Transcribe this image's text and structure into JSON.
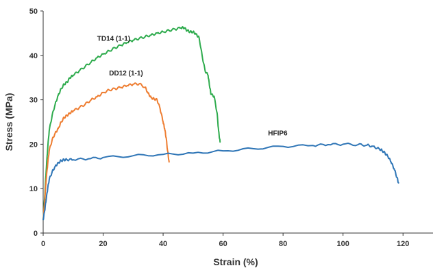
{
  "chart_data": {
    "type": "line",
    "title": "",
    "xlabel": "Strain (%)",
    "ylabel": "Stress (MPa)",
    "xlim": [
      0,
      130
    ],
    "ylim": [
      0,
      50
    ],
    "xticks": [
      0,
      20,
      40,
      60,
      80,
      100,
      120
    ],
    "yticks": [
      0,
      10,
      20,
      30,
      40,
      50
    ],
    "grid": false,
    "legend": "none (series labelled directly on plot)",
    "series": [
      {
        "name": "TD14 (1-1)",
        "color": "#2eab4d",
        "x": [
          0,
          0.5,
          1,
          1.5,
          2,
          3,
          4,
          5,
          6,
          7,
          8,
          9,
          10,
          12,
          14,
          16,
          18,
          20,
          22,
          24,
          26,
          28,
          30,
          32,
          34,
          36,
          38,
          40,
          42,
          44,
          46,
          47,
          48,
          49,
          50,
          51,
          52,
          53,
          54,
          55,
          55.5,
          56,
          57,
          58,
          58.5,
          59
        ],
        "y": [
          3,
          8,
          14,
          19,
          23,
          26.5,
          29,
          31,
          32.5,
          33.5,
          34,
          35,
          35.5,
          36.5,
          37.5,
          38.5,
          39.5,
          40.3,
          41,
          41.7,
          42.3,
          42.9,
          43.4,
          43.8,
          44.2,
          44.6,
          45,
          45.3,
          45.6,
          45.9,
          46.2,
          46.2,
          45.6,
          45.3,
          45.3,
          44.8,
          44,
          40,
          36.5,
          35.5,
          33,
          31.2,
          30.8,
          27,
          23,
          20.5
        ]
      },
      {
        "name": "DD12 (1-1)",
        "color": "#ee7d31",
        "x": [
          0,
          0.5,
          1,
          1.5,
          2,
          3,
          4,
          5,
          6,
          7,
          8,
          9,
          10,
          12,
          14,
          16,
          18,
          20,
          22,
          24,
          26,
          28,
          30,
          32,
          34,
          35,
          36,
          37,
          38,
          39,
          40,
          40.5,
          41,
          41.5,
          42
        ],
        "y": [
          3,
          7,
          12,
          15.5,
          18.5,
          21,
          22.5,
          23.5,
          25,
          26,
          26.5,
          27,
          27.5,
          28.2,
          29,
          30,
          30.7,
          31.6,
          32.2,
          32.5,
          32.8,
          33.2,
          33.5,
          33.6,
          32.8,
          31.5,
          30.5,
          30.2,
          30,
          28,
          25,
          23.5,
          21.5,
          18.5,
          16
        ]
      },
      {
        "name": "HFIP6",
        "color": "#2e75b6",
        "x": [
          0,
          0.5,
          1,
          1.5,
          2,
          3,
          4,
          5,
          6,
          7,
          8,
          10,
          15,
          20,
          30,
          40,
          50,
          60,
          70,
          80,
          90,
          95,
          100,
          105,
          108,
          110,
          112,
          113,
          114,
          115,
          116,
          117,
          118,
          118.5
        ],
        "y": [
          3,
          5,
          7.5,
          10,
          12,
          13.8,
          15,
          15.8,
          16.3,
          16.5,
          16.5,
          16.5,
          16.7,
          17,
          17.4,
          17.7,
          18,
          18.5,
          19,
          19.5,
          19.7,
          19.9,
          20,
          19.9,
          19.8,
          19.5,
          19,
          18.6,
          18,
          17.2,
          16,
          14.5,
          12.5,
          11.3
        ]
      }
    ],
    "annotations": [
      {
        "text": "TD14 (1-1)",
        "x": 18,
        "y": 43.3
      },
      {
        "text": "DD12 (1-1)",
        "x": 22,
        "y": 35.5
      },
      {
        "text": "HFIP6",
        "x": 75,
        "y": 22
      }
    ]
  }
}
